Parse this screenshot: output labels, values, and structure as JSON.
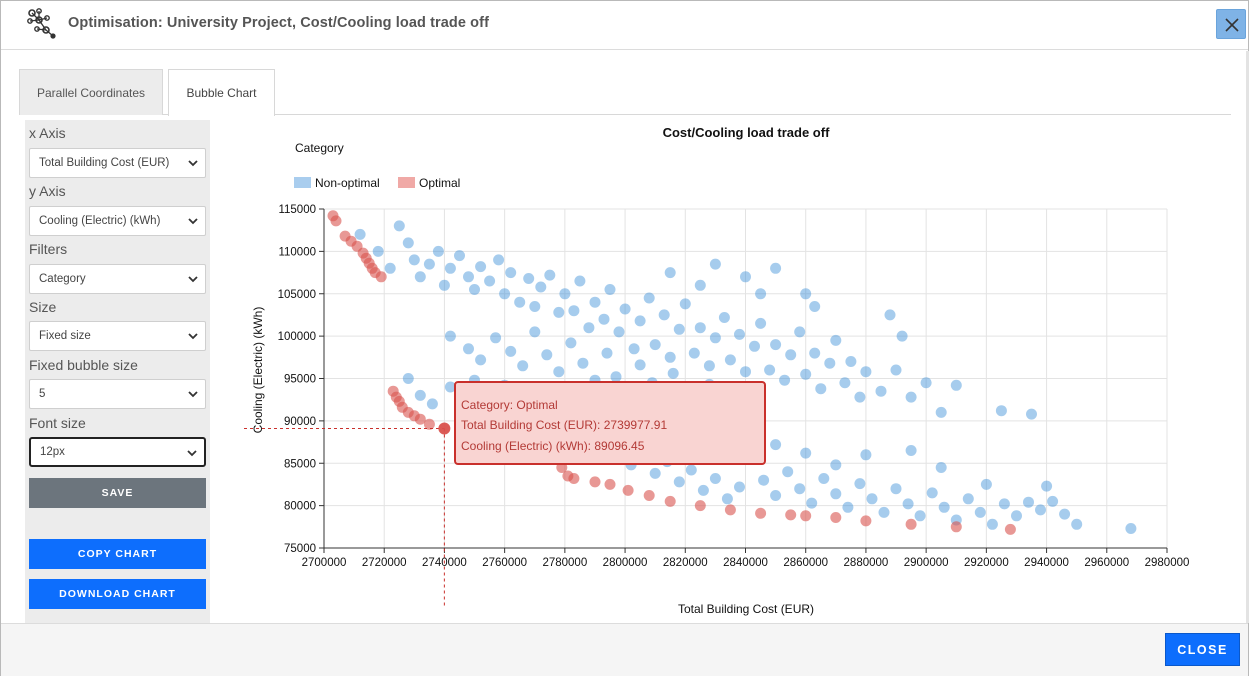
{
  "window": {
    "title": "Optimisation: University Project, Cost/Cooling load trade off",
    "logo_icon": "network-nodes-icon",
    "close_icon": "close-icon"
  },
  "tabs": [
    {
      "label": "Parallel Coordinates",
      "active": false
    },
    {
      "label": "Bubble Chart",
      "active": true
    }
  ],
  "sidebar": {
    "x_axis_label": "x Axis",
    "x_axis_value": "Total Building Cost (EUR)",
    "y_axis_label": "y Axis",
    "y_axis_value": "Cooling (Electric) (kWh)",
    "filters_label": "Filters",
    "filters_value": "Category",
    "size_label": "Size",
    "size_value": "Fixed size",
    "bubble_size_label": "Fixed bubble size",
    "bubble_size_value": "5",
    "font_size_label": "Font size",
    "font_size_value": "12px",
    "save_label": "SAVE",
    "copy_label": "COPY CHART",
    "download_label": "DOWNLOAD CHART"
  },
  "footer": {
    "close_label": "CLOSE"
  },
  "tooltip": {
    "line1": "Category: Optimal",
    "line2": "Total Building Cost (EUR): 2739977.91",
    "line3": "Cooling (Electric) (kWh): 89096.45"
  },
  "chart_data": {
    "type": "scatter",
    "title": "Cost/Cooling load trade off",
    "legend_title": "Category",
    "legend_placement": "top-left",
    "xlabel": "Total Building Cost (EUR)",
    "ylabel": "Cooling (Electric) (kWh)",
    "xlim": [
      2700000,
      2980000
    ],
    "ylim": [
      75000,
      115000
    ],
    "x_ticks": [
      2700000,
      2720000,
      2740000,
      2760000,
      2780000,
      2800000,
      2820000,
      2840000,
      2860000,
      2880000,
      2900000,
      2920000,
      2940000,
      2960000,
      2980000
    ],
    "y_ticks": [
      75000,
      80000,
      85000,
      90000,
      95000,
      100000,
      105000,
      110000,
      115000
    ],
    "grid": true,
    "crosshair": {
      "x": 2739977.91,
      "y": 89096.45
    },
    "series": [
      {
        "name": "Non-optimal",
        "color": "#3a8fd6",
        "points": [
          [
            2712000,
            112000
          ],
          [
            2718000,
            110000
          ],
          [
            2722000,
            108000
          ],
          [
            2725000,
            113000
          ],
          [
            2728000,
            111000
          ],
          [
            2730000,
            109000
          ],
          [
            2732000,
            107000
          ],
          [
            2735000,
            108500
          ],
          [
            2738000,
            110000
          ],
          [
            2740000,
            106000
          ],
          [
            2742000,
            108000
          ],
          [
            2745000,
            109500
          ],
          [
            2748000,
            107000
          ],
          [
            2750000,
            105500
          ],
          [
            2752000,
            108200
          ],
          [
            2755000,
            106500
          ],
          [
            2758000,
            109000
          ],
          [
            2760000,
            105000
          ],
          [
            2762000,
            107500
          ],
          [
            2765000,
            104000
          ],
          [
            2768000,
            106800
          ],
          [
            2770000,
            103500
          ],
          [
            2772000,
            105800
          ],
          [
            2775000,
            107200
          ],
          [
            2778000,
            102800
          ],
          [
            2780000,
            105000
          ],
          [
            2783000,
            103000
          ],
          [
            2785000,
            106500
          ],
          [
            2788000,
            101000
          ],
          [
            2790000,
            104000
          ],
          [
            2793000,
            102000
          ],
          [
            2795000,
            105500
          ],
          [
            2798000,
            100500
          ],
          [
            2800000,
            103200
          ],
          [
            2803000,
            98500
          ],
          [
            2805000,
            101800
          ],
          [
            2808000,
            104500
          ],
          [
            2810000,
            99000
          ],
          [
            2813000,
            102500
          ],
          [
            2815000,
            97500
          ],
          [
            2818000,
            100800
          ],
          [
            2820000,
            103800
          ],
          [
            2823000,
            98000
          ],
          [
            2825000,
            101000
          ],
          [
            2828000,
            96500
          ],
          [
            2830000,
            99800
          ],
          [
            2833000,
            102200
          ],
          [
            2835000,
            97200
          ],
          [
            2838000,
            100200
          ],
          [
            2840000,
            95800
          ],
          [
            2843000,
            98800
          ],
          [
            2845000,
            101500
          ],
          [
            2848000,
            96000
          ],
          [
            2850000,
            99000
          ],
          [
            2853000,
            94800
          ],
          [
            2855000,
            97800
          ],
          [
            2858000,
            100500
          ],
          [
            2860000,
            95500
          ],
          [
            2863000,
            98000
          ],
          [
            2865000,
            93800
          ],
          [
            2868000,
            96800
          ],
          [
            2870000,
            99500
          ],
          [
            2873000,
            94500
          ],
          [
            2875000,
            97000
          ],
          [
            2878000,
            92800
          ],
          [
            2880000,
            95800
          ],
          [
            2885000,
            93500
          ],
          [
            2890000,
            96000
          ],
          [
            2895000,
            92800
          ],
          [
            2900000,
            94500
          ],
          [
            2905000,
            91000
          ],
          [
            2910000,
            94200
          ],
          [
            2925000,
            91200
          ],
          [
            2935000,
            90800
          ],
          [
            2888000,
            102500
          ],
          [
            2892000,
            100000
          ],
          [
            2815000,
            107500
          ],
          [
            2825000,
            106000
          ],
          [
            2830000,
            108500
          ],
          [
            2840000,
            107000
          ],
          [
            2845000,
            105000
          ],
          [
            2850000,
            108000
          ],
          [
            2860000,
            105000
          ],
          [
            2863000,
            103500
          ],
          [
            2742000,
            100000
          ],
          [
            2748000,
            98500
          ],
          [
            2752000,
            97200
          ],
          [
            2757000,
            99800
          ],
          [
            2762000,
            98200
          ],
          [
            2766000,
            96500
          ],
          [
            2770000,
            100500
          ],
          [
            2774000,
            97800
          ],
          [
            2778000,
            95800
          ],
          [
            2782000,
            99200
          ],
          [
            2786000,
            96800
          ],
          [
            2790000,
            94800
          ],
          [
            2794000,
            98000
          ],
          [
            2797000,
            95200
          ],
          [
            2801000,
            93800
          ],
          [
            2805000,
            96600
          ],
          [
            2809000,
            94500
          ],
          [
            2812000,
            92800
          ],
          [
            2816000,
            95600
          ],
          [
            2820000,
            93200
          ],
          [
            2824000,
            91500
          ],
          [
            2828000,
            94300
          ],
          [
            2832000,
            92000
          ],
          [
            2836000,
            90500
          ],
          [
            2840000,
            93000
          ],
          [
            2728000,
            95000
          ],
          [
            2732000,
            93000
          ],
          [
            2736000,
            92000
          ],
          [
            2742000,
            94000
          ],
          [
            2746000,
            91500
          ],
          [
            2750000,
            92800
          ],
          [
            2755000,
            90800
          ],
          [
            2758000,
            92200
          ],
          [
            2762000,
            89800
          ],
          [
            2766000,
            91200
          ],
          [
            2770000,
            88800
          ],
          [
            2774000,
            90200
          ],
          [
            2778000,
            87800
          ],
          [
            2782000,
            89200
          ],
          [
            2786000,
            86800
          ],
          [
            2790000,
            88200
          ],
          [
            2794000,
            85800
          ],
          [
            2798000,
            87200
          ],
          [
            2802000,
            84800
          ],
          [
            2806000,
            86200
          ],
          [
            2810000,
            83800
          ],
          [
            2814000,
            85200
          ],
          [
            2818000,
            82800
          ],
          [
            2822000,
            84200
          ],
          [
            2826000,
            81800
          ],
          [
            2830000,
            83200
          ],
          [
            2834000,
            80800
          ],
          [
            2838000,
            82200
          ],
          [
            2842000,
            85500
          ],
          [
            2846000,
            83000
          ],
          [
            2850000,
            81200
          ],
          [
            2854000,
            84000
          ],
          [
            2858000,
            82000
          ],
          [
            2862000,
            80300
          ],
          [
            2866000,
            83200
          ],
          [
            2870000,
            81400
          ],
          [
            2874000,
            79800
          ],
          [
            2878000,
            82600
          ],
          [
            2882000,
            80800
          ],
          [
            2886000,
            79200
          ],
          [
            2890000,
            82000
          ],
          [
            2894000,
            80200
          ],
          [
            2898000,
            78800
          ],
          [
            2902000,
            81500
          ],
          [
            2906000,
            79800
          ],
          [
            2910000,
            78300
          ],
          [
            2914000,
            80800
          ],
          [
            2918000,
            79200
          ],
          [
            2922000,
            77800
          ],
          [
            2926000,
            80200
          ],
          [
            2930000,
            78800
          ],
          [
            2934000,
            80400
          ],
          [
            2938000,
            79500
          ],
          [
            2942000,
            80500
          ],
          [
            2946000,
            79000
          ],
          [
            2950000,
            77800
          ],
          [
            2968000,
            77300
          ],
          [
            2940000,
            82300
          ],
          [
            2920000,
            82500
          ],
          [
            2905000,
            84500
          ],
          [
            2895000,
            86500
          ],
          [
            2880000,
            86000
          ],
          [
            2870000,
            84800
          ],
          [
            2860000,
            86200
          ],
          [
            2850000,
            87200
          ],
          [
            2840000,
            88500
          ],
          [
            2830000,
            87800
          ],
          [
            2820000,
            88800
          ],
          [
            2810000,
            89500
          ],
          [
            2800000,
            90200
          ],
          [
            2790000,
            91500
          ],
          [
            2780000,
            92500
          ],
          [
            2770000,
            93200
          ],
          [
            2760000,
            94200
          ],
          [
            2750000,
            94800
          ]
        ]
      },
      {
        "name": "Optimal",
        "color": "#d9534f",
        "points": [
          [
            2703000,
            114200
          ],
          [
            2704000,
            113600
          ],
          [
            2707000,
            111800
          ],
          [
            2709000,
            111200
          ],
          [
            2711000,
            110600
          ],
          [
            2713000,
            109800
          ],
          [
            2714000,
            109200
          ],
          [
            2715000,
            108600
          ],
          [
            2716000,
            108000
          ],
          [
            2717000,
            107500
          ],
          [
            2719000,
            107000
          ],
          [
            2723000,
            93500
          ],
          [
            2724000,
            92800
          ],
          [
            2725000,
            92300
          ],
          [
            2726000,
            91600
          ],
          [
            2728000,
            91000
          ],
          [
            2730000,
            90600
          ],
          [
            2732000,
            90200
          ],
          [
            2735000,
            89600
          ],
          [
            2739977.91,
            89096.45
          ],
          [
            2772000,
            87500
          ],
          [
            2775000,
            86500
          ],
          [
            2777000,
            85500
          ],
          [
            2779000,
            84500
          ],
          [
            2781000,
            83500
          ],
          [
            2783000,
            83200
          ],
          [
            2790000,
            82800
          ],
          [
            2795000,
            82500
          ],
          [
            2801000,
            81800
          ],
          [
            2808000,
            81200
          ],
          [
            2815000,
            80500
          ],
          [
            2825000,
            80000
          ],
          [
            2835000,
            79500
          ],
          [
            2845000,
            79100
          ],
          [
            2855000,
            78900
          ],
          [
            2860000,
            78800
          ],
          [
            2870000,
            78600
          ],
          [
            2880000,
            78200
          ],
          [
            2895000,
            77800
          ],
          [
            2910000,
            77500
          ],
          [
            2928000,
            77200
          ]
        ]
      }
    ]
  }
}
